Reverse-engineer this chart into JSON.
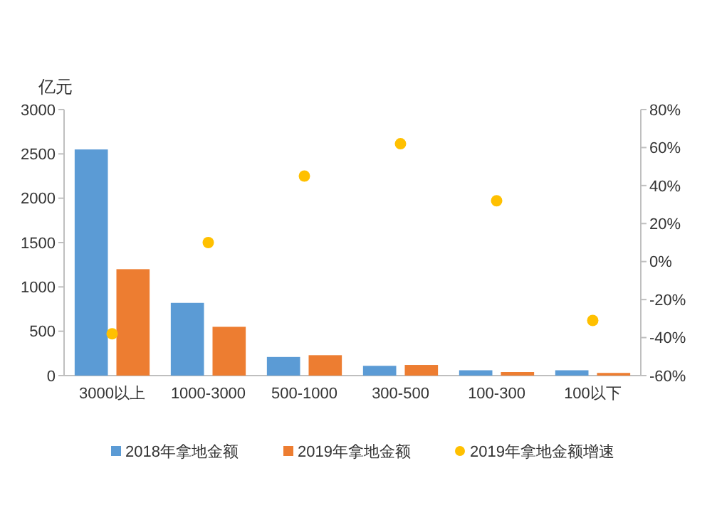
{
  "chart_data": {
    "type": "bar",
    "ylabel": "亿元",
    "categories": [
      "3000以上",
      "1000-3000",
      "500-1000",
      "300-500",
      "100-300",
      "100以下"
    ],
    "series": [
      {
        "name": "2018年拿地金额",
        "color": "#5b9bd5",
        "values": [
          2550,
          820,
          210,
          110,
          60,
          60
        ]
      },
      {
        "name": "2019年拿地金额",
        "color": "#ed7d31",
        "values": [
          1200,
          550,
          230,
          120,
          40,
          30
        ]
      },
      {
        "name": "2019年拿地金额增速",
        "color": "#ffc000",
        "type": "scatter",
        "axis": "y2",
        "x": [
          "3000以上",
          "1000-3000",
          "500-1000",
          "300-500",
          "100-300",
          "100以下"
        ],
        "values": [
          -38,
          10,
          45,
          62,
          32,
          -31
        ]
      }
    ],
    "ylim": [
      0,
      3000
    ],
    "yticks": [
      0,
      500,
      1000,
      1500,
      2000,
      2500,
      3000
    ],
    "y2lim": [
      -60,
      80
    ],
    "y2ticks": [
      {
        "value": -60,
        "label": "-60%"
      },
      {
        "value": -40,
        "label": "-40%"
      },
      {
        "value": -20,
        "label": "-20%"
      },
      {
        "value": 0,
        "label": "0%"
      },
      {
        "value": 20,
        "label": "20%"
      },
      {
        "value": 40,
        "label": "40%"
      },
      {
        "value": 60,
        "label": "60%"
      },
      {
        "value": 80,
        "label": "80%"
      }
    ],
    "legend": "bottom",
    "marker": "circle",
    "grid": false
  }
}
